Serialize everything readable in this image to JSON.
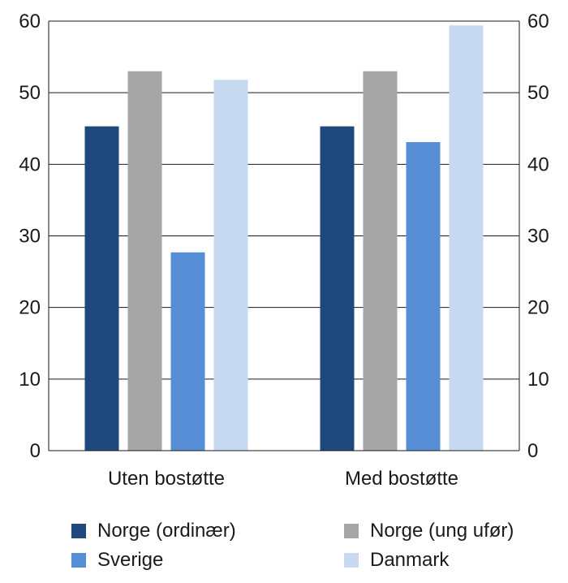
{
  "chart_data": {
    "type": "bar",
    "categories": [
      "Uten bostøtte",
      "Med bostøtte"
    ],
    "series": [
      {
        "name": "Norge (ordinær)",
        "color": "#1f497d",
        "values": [
          45.3,
          45.3
        ]
      },
      {
        "name": "Norge (ung ufør)",
        "color": "#a6a6a6",
        "values": [
          53.0,
          53.0
        ]
      },
      {
        "name": "Sverige",
        "color": "#558ed5",
        "values": [
          27.7,
          43.1
        ]
      },
      {
        "name": "Danmark",
        "color": "#c6d9f1",
        "values": [
          51.8,
          59.4
        ]
      }
    ],
    "yticks": [
      "0",
      "10",
      "20",
      "30",
      "40",
      "50",
      "60"
    ],
    "ylim": [
      0,
      60
    ],
    "grid": true,
    "secondary_axis": true,
    "legend_position": "bottom"
  }
}
